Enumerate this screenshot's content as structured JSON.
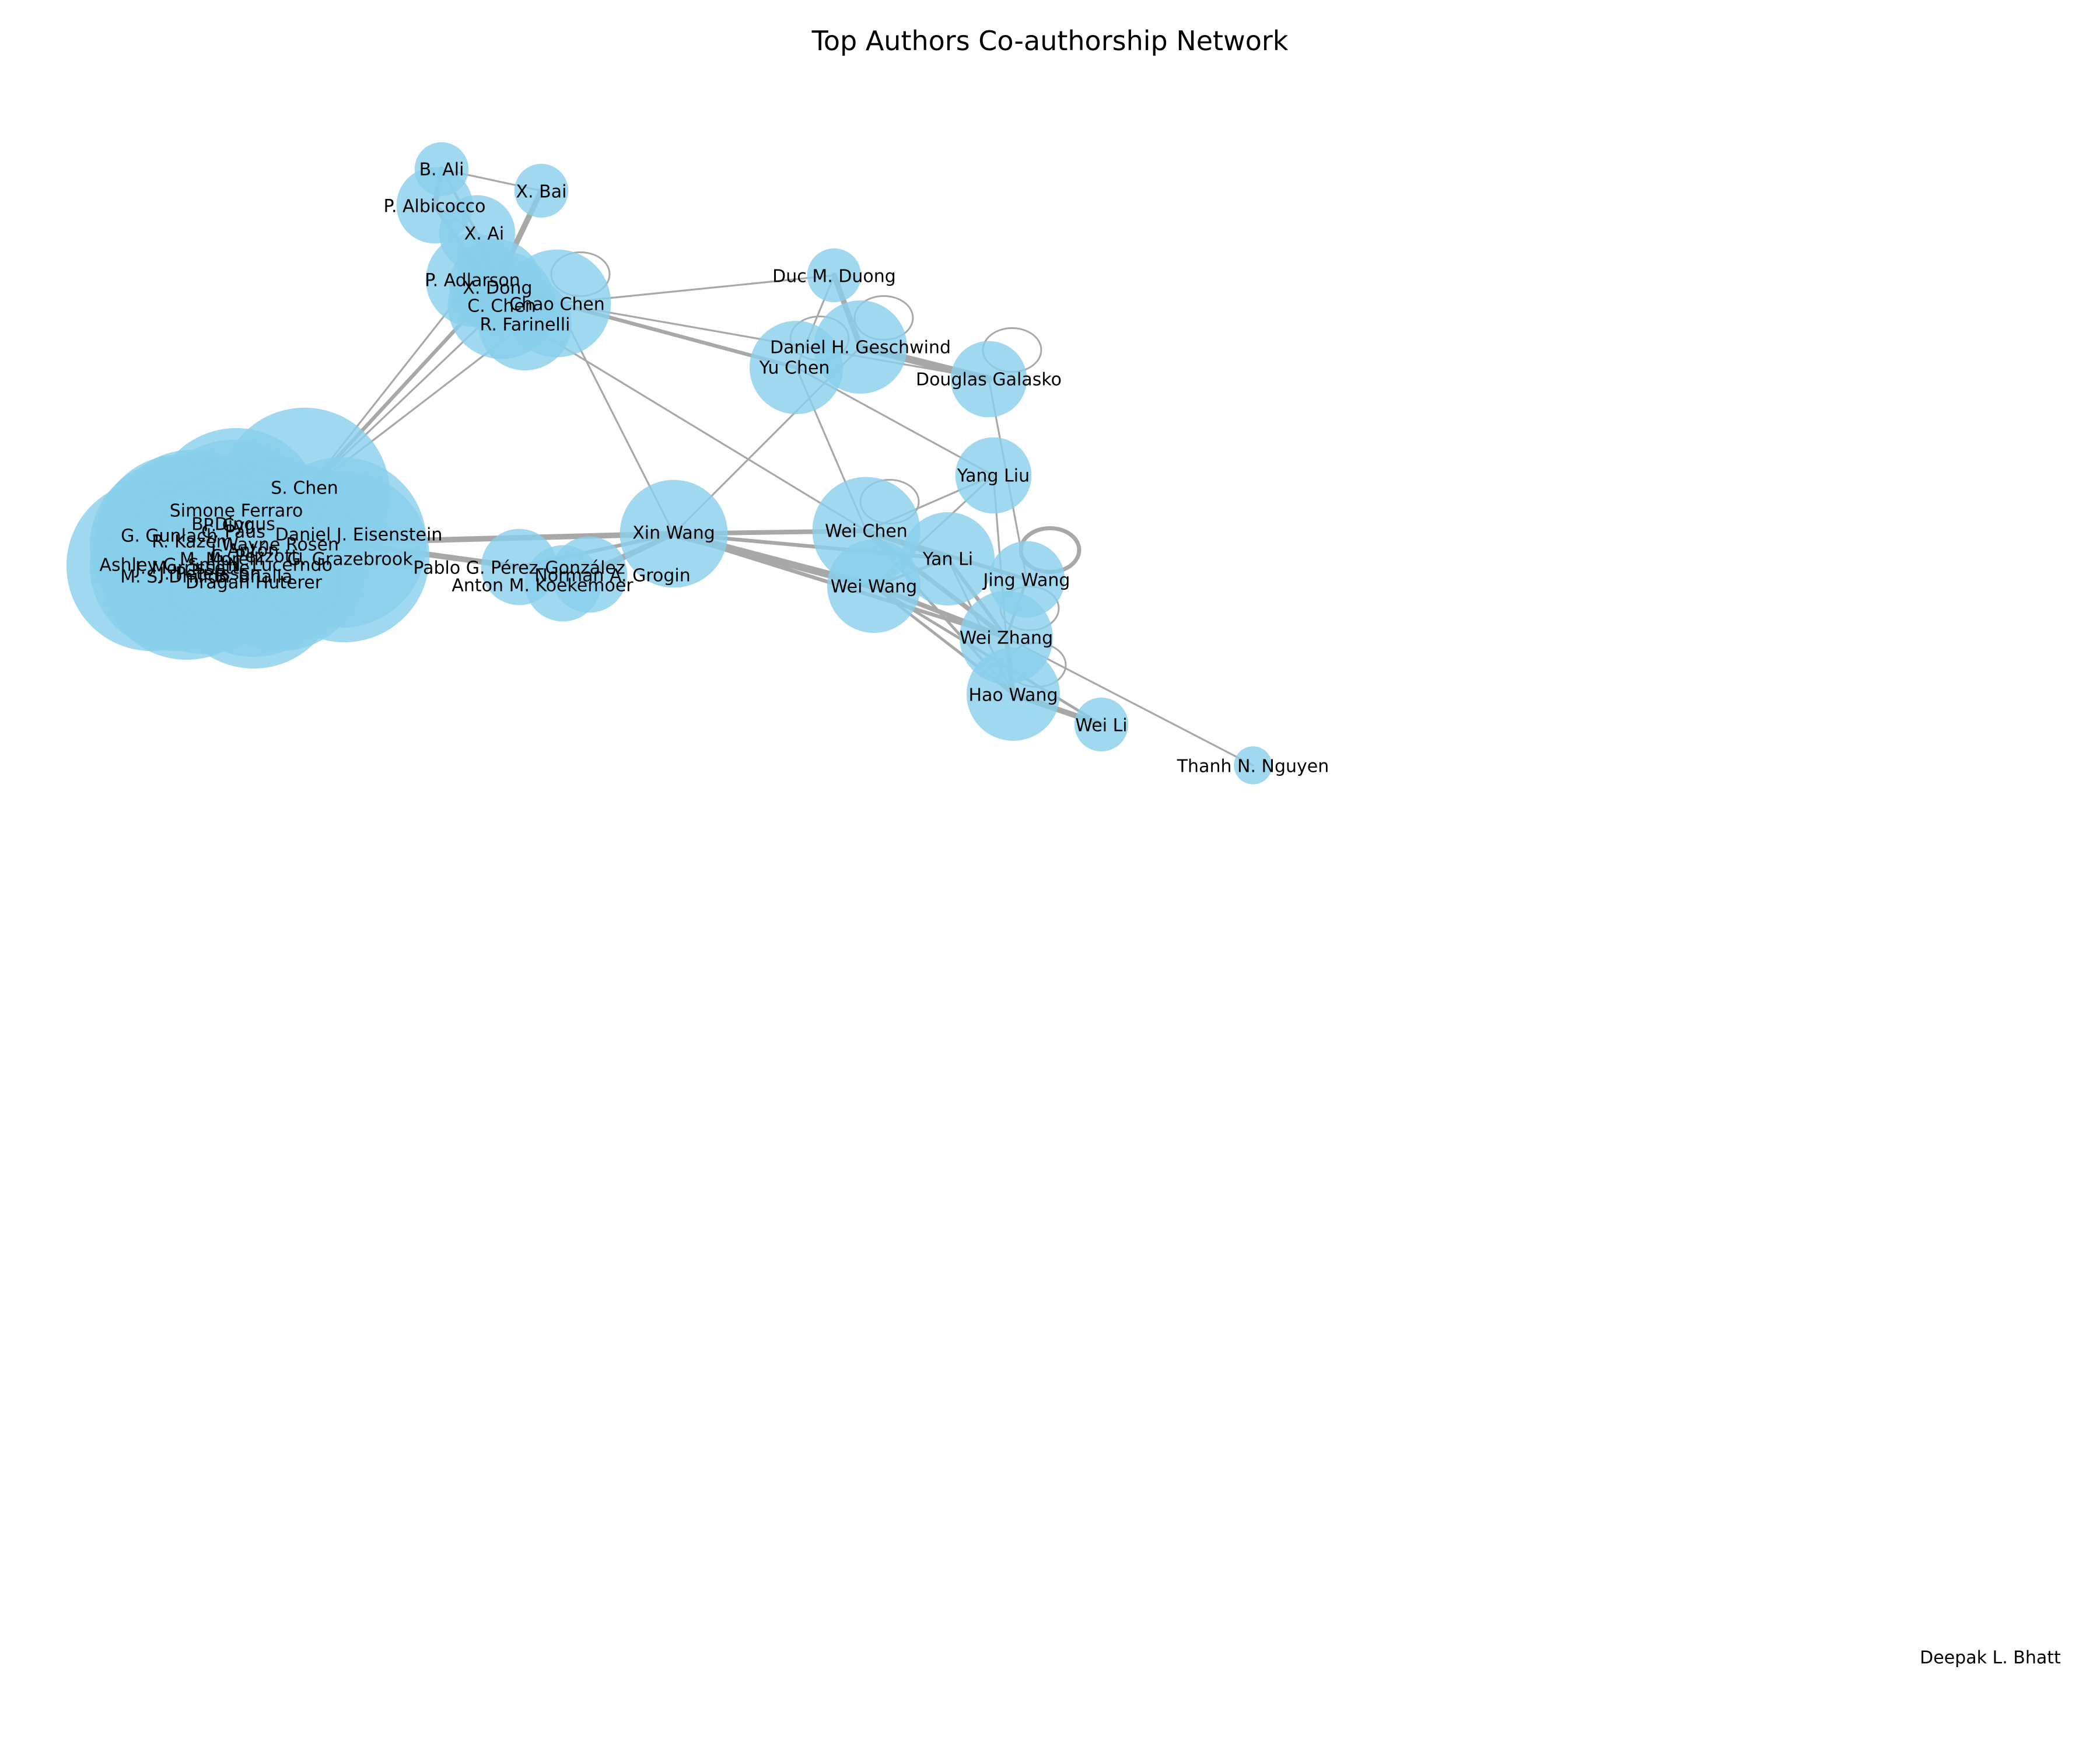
{
  "title": "Top Authors Co-authorship Network",
  "colors": {
    "node": "#87ceeb",
    "edge": "#a8a8a8",
    "background": "#ffffff",
    "text": "#000000"
  },
  "graph": {
    "nodes": [
      {
        "id": "S. Chen",
        "weight": 10
      },
      {
        "id": "Simone Ferraro",
        "weight": 10
      },
      {
        "id": "B. Dingus",
        "weight": 10
      },
      {
        "id": "P. Cyr",
        "weight": 10
      },
      {
        "id": "G. Gunlach",
        "weight": 10
      },
      {
        "id": "Daniel J. Eisenstein",
        "weight": 10
      },
      {
        "id": "C. Paus",
        "weight": 10
      },
      {
        "id": "R. Kazem",
        "weight": 10
      },
      {
        "id": "Wayne Rosen",
        "weight": 10
      },
      {
        "id": "J. Antón",
        "weight": 10
      },
      {
        "id": "G. Grazebrook",
        "weight": 10
      },
      {
        "id": "Ashley G. Smith",
        "weight": 10
      },
      {
        "id": "J. Morrissette",
        "weight": 10
      },
      {
        "id": "M. Morelli",
        "weight": 10
      },
      {
        "id": "G. Pezzotti",
        "weight": 10
      },
      {
        "id": "J. Petersson",
        "weight": 10
      },
      {
        "id": "M. S. Dhillon",
        "weight": 10
      },
      {
        "id": "N. Lucerndo",
        "weight": 10
      },
      {
        "id": "B. Bhalla",
        "weight": 10
      },
      {
        "id": "Dragan Huterer",
        "weight": 10
      },
      {
        "id": "Xin Wang",
        "weight": 4
      },
      {
        "id": "Pablo G. Pérez-González",
        "weight": 2
      },
      {
        "id": "Norman A. Grogin",
        "weight": 2
      },
      {
        "id": "Anton M. Koekemoer",
        "weight": 2
      },
      {
        "id": "B. Ali",
        "weight": 1
      },
      {
        "id": "X. Bai",
        "weight": 1
      },
      {
        "id": "P. Albicocco",
        "weight": 2
      },
      {
        "id": "X. Ai",
        "weight": 2
      },
      {
        "id": "P. Adlarson",
        "weight": 3
      },
      {
        "id": "X. Dong",
        "weight": 3
      },
      {
        "id": "C. Chen",
        "weight": 4
      },
      {
        "id": "Chao Chen",
        "weight": 4
      },
      {
        "id": "R. Farinelli",
        "weight": 3
      },
      {
        "id": "Duc M. Duong",
        "weight": 1
      },
      {
        "id": "Daniel H. Geschwind",
        "weight": 3
      },
      {
        "id": "Yu Chen",
        "weight": 3
      },
      {
        "id": "Douglas Galasko",
        "weight": 2
      },
      {
        "id": "Yang Liu",
        "weight": 2
      },
      {
        "id": "Wei Chen",
        "weight": 4
      },
      {
        "id": "Yan Li",
        "weight": 3
      },
      {
        "id": "Jing Wang",
        "weight": 2
      },
      {
        "id": "Wei Wang",
        "weight": 3
      },
      {
        "id": "Wei Zhang",
        "weight": 3
      },
      {
        "id": "Hao Wang",
        "weight": 3
      },
      {
        "id": "Wei Li",
        "weight": 1
      },
      {
        "id": "Thanh N. Nguyen",
        "weight": 0.5
      },
      {
        "id": "Deepak L. Bhatt",
        "weight": 0
      }
    ],
    "edges": [
      [
        "B. Ali",
        "P. Albicocco",
        6
      ],
      [
        "B. Ali",
        "X. Bai",
        2
      ],
      [
        "B. Ali",
        "X. Ai",
        3
      ],
      [
        "X. Bai",
        "X. Dong",
        6
      ],
      [
        "P. Albicocco",
        "X. Ai",
        3
      ],
      [
        "P. Albicocco",
        "C. Chen",
        5
      ],
      [
        "X. Ai",
        "X. Dong",
        3
      ],
      [
        "P. Adlarson",
        "C. Chen",
        5
      ],
      [
        "X. Dong",
        "Chao Chen",
        4
      ],
      [
        "C. Chen",
        "R. Farinelli",
        4
      ],
      [
        "P. Adlarson",
        "R. Farinelli",
        3
      ],
      [
        "Chao Chen",
        "Duc M. Duong",
        2
      ],
      [
        "Chao Chen",
        "Yu Chen",
        4
      ],
      [
        "Chao Chen",
        "Douglas Galasko",
        2
      ],
      [
        "Chao Chen",
        "Xin Wang",
        2
      ],
      [
        "R. Farinelli",
        "Wei Chen",
        2
      ],
      [
        "C. Chen",
        "S. Chen",
        2
      ],
      [
        "P. Adlarson",
        "S. Chen",
        2
      ],
      [
        "X. Dong",
        "S. Chen",
        4
      ],
      [
        "R. Farinelli",
        "S. Chen",
        2
      ],
      [
        "Duc M. Duong",
        "Daniel H. Geschwind",
        6
      ],
      [
        "Duc M. Duong",
        "Yu Chen",
        2
      ],
      [
        "Daniel H. Geschwind",
        "Douglas Galasko",
        8
      ],
      [
        "Yu Chen",
        "Yang Liu",
        2
      ],
      [
        "Daniel H. Geschwind",
        "Xin Wang",
        2
      ],
      [
        "Yu Chen",
        "Wei Chen",
        2
      ],
      [
        "Douglas Galasko",
        "Jing Wang",
        2
      ],
      [
        "Yang Liu",
        "Wei Chen",
        2
      ],
      [
        "Yang Liu",
        "Wei Wang",
        2
      ],
      [
        "Yang Liu",
        "Wei Zhang",
        2
      ],
      [
        "Xin Wang",
        "Wei Chen",
        5
      ],
      [
        "Xin Wang",
        "Wei Wang",
        8
      ],
      [
        "Xin Wang",
        "Yan Li",
        4
      ],
      [
        "Xin Wang",
        "Wei Zhang",
        4
      ],
      [
        "Xin Wang",
        "Norman A. Grogin",
        5
      ],
      [
        "Xin Wang",
        "Anton M. Koekemoer",
        5
      ],
      [
        "Xin Wang",
        "Pablo G. Pérez-González",
        4
      ],
      [
        "Xin Wang",
        "Daniel J. Eisenstein",
        6
      ],
      [
        "Pablo G. Pérez-González",
        "Daniel J. Eisenstein",
        6
      ],
      [
        "Norman A. Grogin",
        "Anton M. Koekemoer",
        6
      ],
      [
        "Pablo G. Pérez-González",
        "Norman A. Grogin",
        5
      ],
      [
        "Wei Chen",
        "Yan Li",
        5
      ],
      [
        "Wei Chen",
        "Jing Wang",
        4
      ],
      [
        "Wei Chen",
        "Wei Zhang",
        5
      ],
      [
        "Wei Wang",
        "Wei Zhang",
        5
      ],
      [
        "Wei Wang",
        "Hao Wang",
        3
      ],
      [
        "Wei Wang",
        "Wei Li",
        3
      ],
      [
        "Wei Wang",
        "Yan Li",
        3
      ],
      [
        "Yan Li",
        "Wei Zhang",
        4
      ],
      [
        "Yan Li",
        "Hao Wang",
        2
      ],
      [
        "Wei Zhang",
        "Hao Wang",
        5
      ],
      [
        "Wei Zhang",
        "Thanh N. Nguyen",
        2
      ],
      [
        "Hao Wang",
        "Wei Li",
        6
      ],
      [
        "Jing Wang",
        "Wei Zhang",
        3
      ],
      [
        "Wei Chen",
        "Hao Wang",
        3
      ],
      [
        "S. Chen",
        "Simone Ferraro",
        3
      ],
      [
        "B. Dingus",
        "Daniel J. Eisenstein",
        3
      ],
      [
        "G. Gunlach",
        "Dragan Huterer",
        3
      ],
      [
        "Ashley G. Smith",
        "G. Grazebrook",
        3
      ]
    ],
    "self_loops": [
      "Chao Chen",
      "Daniel H. Geschwind",
      "Yu Chen",
      "Douglas Galasko",
      "Wei Chen",
      "Jing Wang",
      "Wei Zhang",
      "Hao Wang"
    ]
  }
}
